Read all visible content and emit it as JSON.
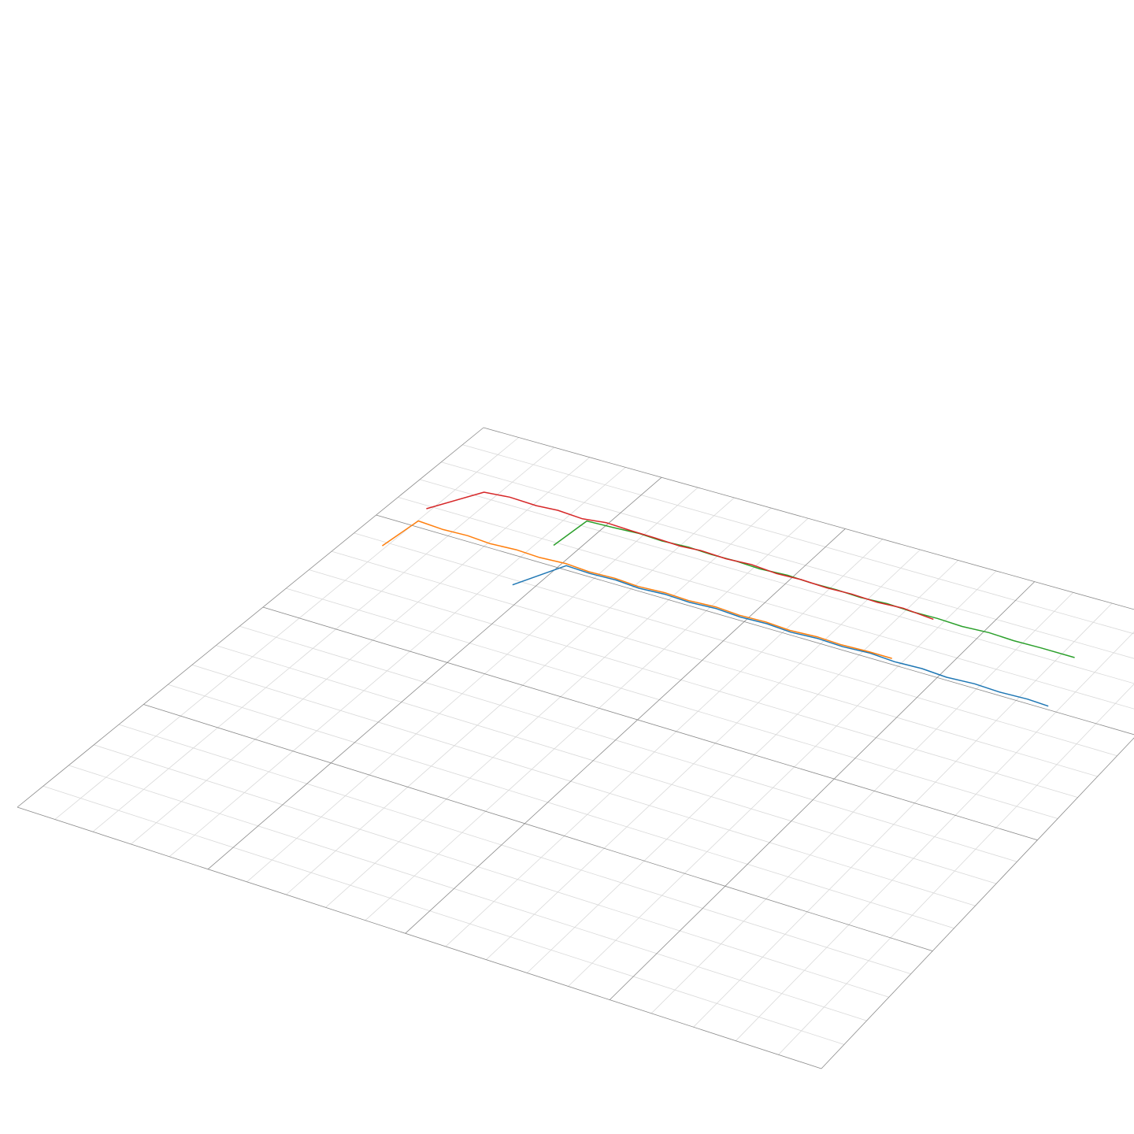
{
  "chart_data": {
    "type": "line3d",
    "xlim": [
      0,
      100
    ],
    "ylim": [
      0,
      100
    ],
    "xticks": [
      0,
      25,
      50,
      75,
      100
    ],
    "yticks": [
      0,
      25,
      50,
      75,
      100
    ],
    "minor_xticks": [
      5,
      10,
      15,
      20,
      30,
      35,
      40,
      45,
      55,
      60,
      65,
      70,
      80,
      85,
      90,
      95
    ],
    "minor_yticks": [
      5,
      10,
      15,
      20,
      30,
      35,
      40,
      45,
      55,
      60,
      65,
      70,
      80,
      85,
      90,
      95
    ],
    "grid": true,
    "series": [
      {
        "color": "#1f77b4",
        "x": [
          22.5,
          25.7,
          29.0,
          32.4,
          35.7,
          39.1,
          42.4,
          45.8,
          49.1,
          52.5,
          55.8,
          59.2,
          62.5,
          65.9,
          69.2,
          72.6,
          75.9,
          79.3,
          82.6,
          86.0,
          88.7
        ],
        "values": [
          31.1,
          24.1,
          24.3,
          24.1,
          24.4,
          24.1,
          24.3,
          24.0,
          24.3,
          24.1,
          24.4,
          24.1,
          24.3,
          24.0,
          24.3,
          24.1,
          24.4,
          24.1,
          24.3,
          24.1,
          24.3
        ]
      },
      {
        "color": "#ff7f0e",
        "x": [
          4.5,
          5.1,
          8.6,
          12.0,
          15.3,
          18.7,
          22.0,
          25.4,
          28.7,
          32.1,
          35.4,
          38.8,
          42.1,
          45.5,
          48.8,
          52.2,
          55.5,
          58.9,
          62.2,
          65.6,
          68.6
        ],
        "values": [
          30.9,
          23.7,
          24.0,
          23.8,
          24.1,
          23.8,
          24.0,
          23.7,
          24.0,
          23.8,
          24.1,
          23.8,
          24.0,
          23.7,
          24.0,
          23.8,
          24.1,
          23.8,
          24.0,
          23.8,
          23.8
        ]
      },
      {
        "color": "#2ca02c",
        "x": [
          22.0,
          22.5,
          26.0,
          29.4,
          32.6,
          36.0,
          39.2,
          42.6,
          45.8,
          49.3,
          52.5,
          55.8,
          59.1,
          62.4,
          65.8,
          69.0,
          72.3,
          75.6,
          78.9,
          82.3,
          86.6
        ],
        "values": [
          20.7,
          13.7,
          13.5,
          13.2,
          13.4,
          13.1,
          13.3,
          13.2,
          13.4,
          13.1,
          13.3,
          13.2,
          13.4,
          13.1,
          13.3,
          13.2,
          13.4,
          13.1,
          13.3,
          13.2,
          13.2
        ]
      },
      {
        "color": "#d62728",
        "x": [
          4.4,
          8.3,
          11.6,
          15.4,
          18.2,
          21.7,
          24.7,
          28.2,
          31.6,
          35.1,
          37.7,
          41.2,
          44.4,
          48.0,
          51.1,
          54.6,
          57.8,
          61.3,
          64.5,
          68.7
        ],
        "values": [
          20.7,
          13.8,
          13.3,
          13.5,
          13.2,
          13.5,
          12.9,
          13.1,
          13.2,
          13.4,
          13.1,
          13.3,
          13.0,
          13.4,
          13.2,
          13.4,
          13.2,
          13.4,
          13.1,
          13.6
        ]
      }
    ]
  }
}
